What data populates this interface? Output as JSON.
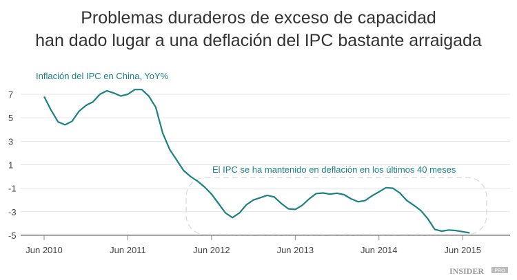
{
  "chart_data": {
    "type": "line",
    "title": [
      "Problemas duraderos de exceso de capacidad",
      "han dado lugar a una deflación del IPC bastante arraigada"
    ],
    "series": [
      {
        "name": "Inflación del IPC en China, YoY%",
        "start": "2010-06",
        "frequency": "monthly",
        "values": [
          6.8,
          5.65,
          4.65,
          4.4,
          4.7,
          5.55,
          6.05,
          6.35,
          7.0,
          7.3,
          7.1,
          6.85,
          7.0,
          7.4,
          7.4,
          6.85,
          5.9,
          3.7,
          2.3,
          1.4,
          0.5,
          0.0,
          -0.4,
          -0.9,
          -1.5,
          -2.3,
          -3.1,
          -3.5,
          -3.1,
          -2.4,
          -2.0,
          -1.8,
          -1.6,
          -1.75,
          -2.3,
          -2.75,
          -2.8,
          -2.45,
          -1.9,
          -1.45,
          -1.4,
          -1.5,
          -1.42,
          -1.55,
          -1.9,
          -2.15,
          -2.05,
          -1.65,
          -1.3,
          -0.95,
          -1.0,
          -1.4,
          -2.05,
          -2.45,
          -2.9,
          -3.6,
          -4.5,
          -4.65,
          -4.55,
          -4.6,
          -4.7,
          -4.8
        ]
      }
    ],
    "x_tick_labels": [
      "Jun 2010",
      "Jun 2011",
      "Jun 2012",
      "Jun 2013",
      "Jun 2014",
      "Jun 2015"
    ],
    "y_ticks": [
      7,
      5,
      3,
      1,
      -1,
      -3,
      -5
    ],
    "ylim": [
      -5,
      7.8
    ],
    "grid": true,
    "annotation": "El IPC se ha mantenido en deflación en los últimos 40 meses",
    "line_color": "#1b8183"
  },
  "logo": "INSIDER PRO"
}
